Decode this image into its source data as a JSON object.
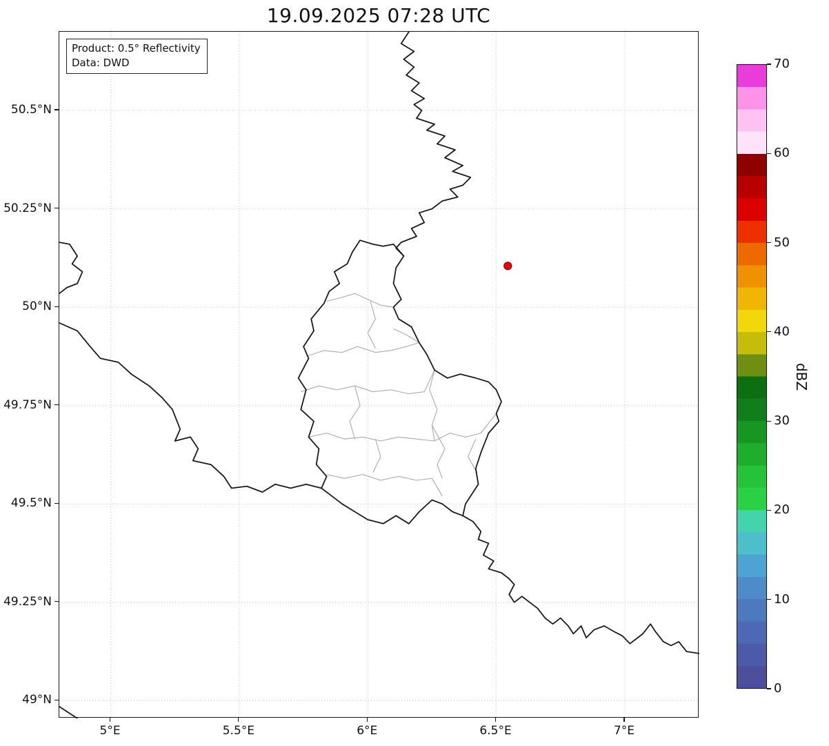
{
  "title": "19.09.2025 07:28 UTC",
  "info_box": {
    "line1": "Product: 0.5° Reflectivity",
    "line2": "Data: DWD"
  },
  "map": {
    "extent": {
      "lon_min": 4.8,
      "lon_max": 7.29,
      "lat_min": 48.955,
      "lat_max": 50.7
    },
    "grid_color": "#c0c0c0",
    "border_color": "#1a1a1a",
    "admin_color": "#aaaaaa",
    "x_ticks": [
      {
        "value": 5.0,
        "label": "5°E"
      },
      {
        "value": 5.5,
        "label": "5.5°E"
      },
      {
        "value": 6.0,
        "label": "6°E"
      },
      {
        "value": 6.5,
        "label": "6.5°E"
      },
      {
        "value": 7.0,
        "label": "7°E"
      }
    ],
    "y_ticks": [
      {
        "value": 50.5,
        "label": "50.5°N"
      },
      {
        "value": 50.25,
        "label": "50.25°N"
      },
      {
        "value": 50.0,
        "label": "50°N"
      },
      {
        "value": 49.75,
        "label": "49.75°N"
      },
      {
        "value": 49.5,
        "label": "49.5°N"
      },
      {
        "value": 49.25,
        "label": "49.25°N"
      },
      {
        "value": 49.0,
        "label": "49°N"
      }
    ],
    "radar_marker": {
      "lon": 6.545,
      "lat": 50.105,
      "color": "#e8000b",
      "edge_color": "#8b0000"
    },
    "country_borders": [
      {
        "name": "be-de-border",
        "points": [
          [
            6.16,
            50.7
          ],
          [
            6.13,
            50.67
          ],
          [
            6.18,
            50.65
          ],
          [
            6.14,
            50.63
          ],
          [
            6.18,
            50.61
          ],
          [
            6.15,
            50.59
          ],
          [
            6.2,
            50.57
          ],
          [
            6.17,
            50.55
          ],
          [
            6.22,
            50.53
          ],
          [
            6.18,
            50.515
          ],
          [
            6.21,
            50.5
          ],
          [
            6.19,
            50.48
          ],
          [
            6.26,
            50.465
          ],
          [
            6.23,
            50.45
          ],
          [
            6.3,
            50.435
          ],
          [
            6.27,
            50.415
          ],
          [
            6.34,
            50.4
          ],
          [
            6.3,
            50.38
          ],
          [
            6.37,
            50.36
          ],
          [
            6.33,
            50.345
          ],
          [
            6.4,
            50.33
          ],
          [
            6.37,
            50.31
          ],
          [
            6.32,
            50.3
          ],
          [
            6.35,
            50.28
          ],
          [
            6.29,
            50.27
          ],
          [
            6.25,
            50.25
          ],
          [
            6.2,
            50.24
          ],
          [
            6.22,
            50.215
          ],
          [
            6.17,
            50.2
          ],
          [
            6.19,
            50.18
          ],
          [
            6.13,
            50.165
          ],
          [
            6.11,
            50.15
          ],
          [
            6.14,
            50.13
          ]
        ]
      },
      {
        "name": "luxembourg-border",
        "points": [
          [
            5.97,
            50.17
          ],
          [
            6.02,
            50.16
          ],
          [
            6.06,
            50.155
          ],
          [
            6.1,
            50.16
          ],
          [
            6.14,
            50.13
          ],
          [
            6.11,
            50.1
          ],
          [
            6.1,
            50.06
          ],
          [
            6.13,
            50.02
          ],
          [
            6.1,
            50.0
          ],
          [
            6.12,
            49.97
          ],
          [
            6.17,
            49.95
          ],
          [
            6.2,
            49.91
          ],
          [
            6.23,
            49.88
          ],
          [
            6.26,
            49.84
          ],
          [
            6.31,
            49.82
          ],
          [
            6.36,
            49.83
          ],
          [
            6.42,
            49.82
          ],
          [
            6.47,
            49.81
          ],
          [
            6.5,
            49.79
          ],
          [
            6.52,
            49.76
          ],
          [
            6.5,
            49.73
          ],
          [
            6.51,
            49.71
          ],
          [
            6.47,
            49.68
          ],
          [
            6.44,
            49.63
          ],
          [
            6.42,
            49.59
          ],
          [
            6.43,
            49.55
          ],
          [
            6.38,
            49.5
          ],
          [
            6.37,
            49.47
          ],
          [
            6.33,
            49.48
          ],
          [
            6.29,
            49.5
          ],
          [
            6.25,
            49.51
          ],
          [
            6.2,
            49.48
          ],
          [
            6.16,
            49.45
          ],
          [
            6.11,
            49.47
          ],
          [
            6.06,
            49.45
          ],
          [
            6.0,
            49.46
          ],
          [
            5.95,
            49.48
          ],
          [
            5.9,
            49.5
          ],
          [
            5.86,
            49.52
          ],
          [
            5.82,
            49.54
          ],
          [
            5.84,
            49.57
          ],
          [
            5.8,
            49.6
          ],
          [
            5.81,
            49.64
          ],
          [
            5.77,
            49.67
          ],
          [
            5.79,
            49.71
          ],
          [
            5.74,
            49.74
          ],
          [
            5.76,
            49.79
          ],
          [
            5.73,
            49.82
          ],
          [
            5.77,
            49.87
          ],
          [
            5.75,
            49.9
          ],
          [
            5.79,
            49.94
          ],
          [
            5.78,
            49.97
          ],
          [
            5.83,
            50.01
          ],
          [
            5.85,
            50.04
          ],
          [
            5.89,
            50.06
          ],
          [
            5.87,
            50.09
          ],
          [
            5.92,
            50.11
          ],
          [
            5.94,
            50.14
          ],
          [
            5.97,
            50.17
          ]
        ]
      },
      {
        "name": "fr-be-border",
        "points": [
          [
            4.8,
            49.96
          ],
          [
            4.87,
            49.94
          ],
          [
            4.92,
            49.9
          ],
          [
            4.96,
            49.87
          ],
          [
            5.03,
            49.86
          ],
          [
            5.08,
            49.83
          ],
          [
            5.15,
            49.8
          ],
          [
            5.2,
            49.77
          ],
          [
            5.24,
            49.74
          ],
          [
            5.27,
            49.69
          ],
          [
            5.25,
            49.66
          ],
          [
            5.31,
            49.67
          ],
          [
            5.34,
            49.64
          ],
          [
            5.32,
            49.61
          ],
          [
            5.39,
            49.6
          ],
          [
            5.44,
            49.57
          ],
          [
            5.47,
            49.54
          ],
          [
            5.53,
            49.545
          ],
          [
            5.59,
            49.53
          ],
          [
            5.64,
            49.55
          ],
          [
            5.7,
            49.54
          ],
          [
            5.76,
            49.55
          ],
          [
            5.82,
            49.54
          ]
        ]
      },
      {
        "name": "givet-pocket-border",
        "points": [
          [
            4.8,
            50.165
          ],
          [
            4.84,
            50.16
          ],
          [
            4.87,
            50.13
          ],
          [
            4.85,
            50.11
          ],
          [
            4.89,
            50.09
          ],
          [
            4.87,
            50.06
          ],
          [
            4.83,
            50.05
          ],
          [
            4.8,
            50.035
          ]
        ]
      },
      {
        "name": "fr-de-border",
        "points": [
          [
            6.37,
            49.47
          ],
          [
            6.41,
            49.455
          ],
          [
            6.44,
            49.43
          ],
          [
            6.43,
            49.41
          ],
          [
            6.47,
            49.4
          ],
          [
            6.45,
            49.37
          ],
          [
            6.49,
            49.355
          ],
          [
            6.47,
            49.335
          ],
          [
            6.52,
            49.325
          ],
          [
            6.55,
            49.31
          ],
          [
            6.57,
            49.295
          ],
          [
            6.55,
            49.27
          ],
          [
            6.57,
            49.25
          ],
          [
            6.6,
            49.265
          ],
          [
            6.63,
            49.25
          ],
          [
            6.66,
            49.235
          ],
          [
            6.69,
            49.21
          ],
          [
            6.72,
            49.195
          ],
          [
            6.75,
            49.21
          ],
          [
            6.78,
            49.19
          ],
          [
            6.8,
            49.17
          ],
          [
            6.83,
            49.19
          ],
          [
            6.85,
            49.16
          ],
          [
            6.88,
            49.18
          ],
          [
            6.92,
            49.19
          ],
          [
            6.96,
            49.175
          ],
          [
            6.99,
            49.165
          ],
          [
            7.02,
            49.145
          ],
          [
            7.05,
            49.16
          ],
          [
            7.07,
            49.17
          ],
          [
            7.1,
            49.195
          ],
          [
            7.12,
            49.175
          ],
          [
            7.15,
            49.15
          ],
          [
            7.18,
            49.14
          ],
          [
            7.21,
            49.15
          ],
          [
            7.24,
            49.125
          ],
          [
            7.29,
            49.12
          ]
        ]
      },
      {
        "name": "corner-border-fragment",
        "points": [
          [
            4.8,
            48.985
          ],
          [
            4.87,
            48.955
          ]
        ]
      }
    ],
    "district_borders": [
      [
        [
          5.84,
          50.015
        ],
        [
          5.9,
          50.025
        ],
        [
          5.95,
          50.035
        ],
        [
          6.0,
          50.02
        ],
        [
          6.05,
          50.005
        ],
        [
          6.1,
          50.0
        ],
        [
          6.13,
          50.02
        ]
      ],
      [
        [
          5.76,
          49.875
        ],
        [
          5.83,
          49.89
        ],
        [
          5.9,
          49.885
        ],
        [
          5.96,
          49.9
        ],
        [
          6.03,
          49.885
        ],
        [
          6.09,
          49.89
        ],
        [
          6.15,
          49.9
        ],
        [
          6.2,
          49.91
        ]
      ],
      [
        [
          6.01,
          50.015
        ],
        [
          6.03,
          49.97
        ],
        [
          6.0,
          49.935
        ],
        [
          6.03,
          49.895
        ]
      ],
      [
        [
          5.74,
          49.785
        ],
        [
          5.81,
          49.8
        ],
        [
          5.88,
          49.79
        ],
        [
          5.95,
          49.8
        ],
        [
          6.02,
          49.785
        ],
        [
          6.09,
          49.79
        ],
        [
          6.16,
          49.78
        ],
        [
          6.22,
          49.785
        ],
        [
          6.26,
          49.84
        ]
      ],
      [
        [
          5.95,
          49.8
        ],
        [
          5.97,
          49.75
        ],
        [
          5.93,
          49.71
        ],
        [
          5.95,
          49.665
        ]
      ],
      [
        [
          5.77,
          49.67
        ],
        [
          5.84,
          49.68
        ],
        [
          5.91,
          49.665
        ],
        [
          5.98,
          49.67
        ],
        [
          6.05,
          49.66
        ],
        [
          6.12,
          49.67
        ],
        [
          6.19,
          49.665
        ],
        [
          6.26,
          49.66
        ],
        [
          6.32,
          49.68
        ],
        [
          6.38,
          49.67
        ],
        [
          6.44,
          49.68
        ],
        [
          6.5,
          49.73
        ]
      ],
      [
        [
          6.26,
          49.84
        ],
        [
          6.24,
          49.79
        ],
        [
          6.27,
          49.74
        ],
        [
          6.25,
          49.7
        ],
        [
          6.26,
          49.66
        ]
      ],
      [
        [
          5.84,
          49.575
        ],
        [
          5.91,
          49.565
        ],
        [
          5.98,
          49.575
        ],
        [
          6.05,
          49.56
        ],
        [
          6.12,
          49.57
        ],
        [
          6.19,
          49.56
        ],
        [
          6.25,
          49.565
        ],
        [
          6.29,
          49.52
        ]
      ],
      [
        [
          6.42,
          49.665
        ],
        [
          6.39,
          49.62
        ],
        [
          6.42,
          49.585
        ],
        [
          6.43,
          49.55
        ]
      ],
      [
        [
          6.03,
          49.665
        ],
        [
          6.05,
          49.62
        ],
        [
          6.02,
          49.58
        ]
      ],
      [
        [
          6.25,
          49.7
        ],
        [
          6.3,
          49.64
        ],
        [
          6.27,
          49.6
        ],
        [
          6.29,
          49.565
        ]
      ],
      [
        [
          6.1,
          49.945
        ],
        [
          6.15,
          49.93
        ],
        [
          6.2,
          49.91
        ]
      ]
    ]
  },
  "colorbar": {
    "label": "dBZ",
    "min": 0,
    "max": 70,
    "ticks": [
      0,
      10,
      20,
      30,
      40,
      50,
      60,
      70
    ],
    "colors": [
      "#4d4f9d",
      "#4d5aa9",
      "#4d68b4",
      "#4d79bf",
      "#4d8cc8",
      "#4da3d2",
      "#4dbfca",
      "#43d4ab",
      "#2bd144",
      "#25c338",
      "#1ead2c",
      "#179622",
      "#107f19",
      "#0c6f12",
      "#6f8f13",
      "#c6bd0a",
      "#f2d70a",
      "#f0b505",
      "#ef9100",
      "#ee6a00",
      "#ee2f00",
      "#de0000",
      "#b80000",
      "#8f0000",
      "#ffe3fa",
      "#ffc2f3",
      "#ff92e9",
      "#e93cda"
    ]
  }
}
